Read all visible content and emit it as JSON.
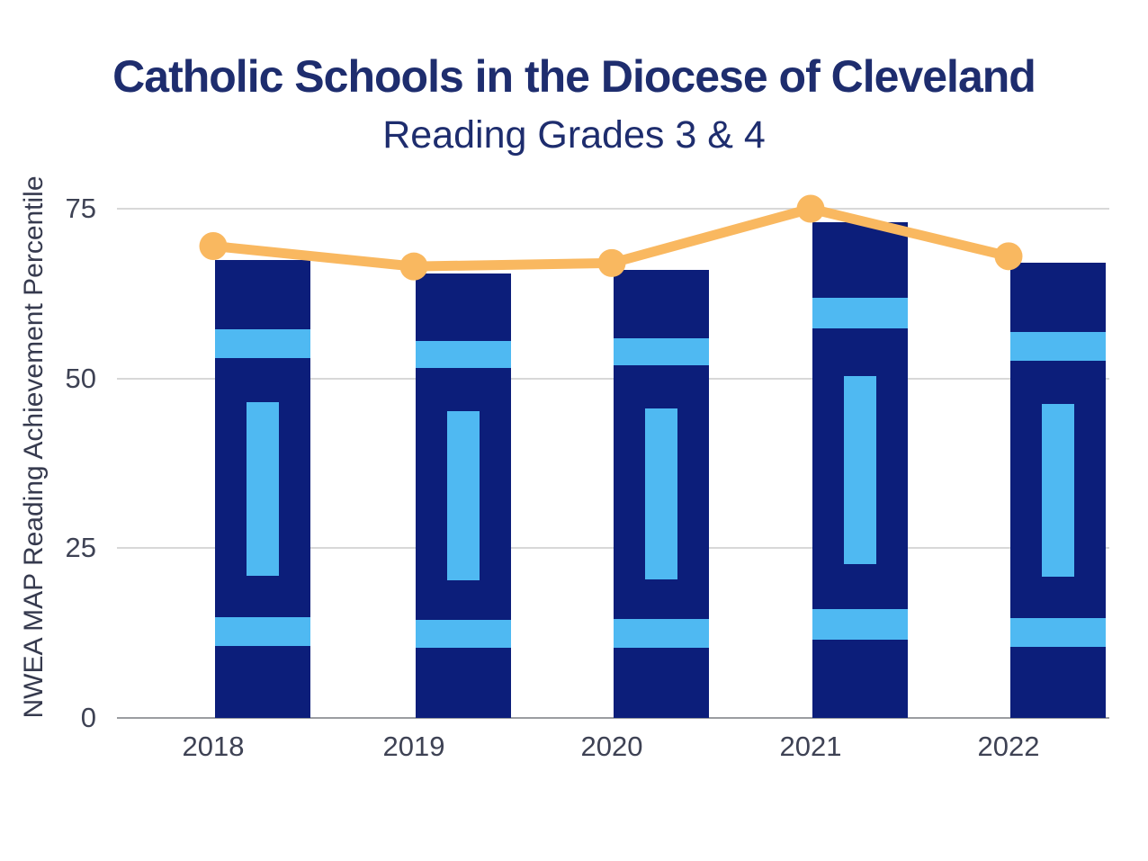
{
  "chart_data": {
    "type": "bar",
    "title": "Catholic Schools in the Diocese of Cleveland",
    "subtitle": "Reading Grades 3 & 4",
    "ylabel": "NWEA MAP Reading Achievement Percentile",
    "xlabel": "",
    "categories": [
      "2018",
      "2019",
      "2020",
      "2021",
      "2022"
    ],
    "bar_values": [
      67.5,
      65.5,
      66,
      73,
      67
    ],
    "line_values": [
      69.5,
      66.5,
      67,
      75,
      68
    ],
    "yticks": [
      0,
      25,
      50,
      75
    ],
    "ylim": [
      0,
      75
    ],
    "grid": true,
    "legend": false,
    "colors": {
      "bar": "#0C1E7A",
      "bar_accent": "#4FB9F2",
      "line": "#F9B860",
      "title": "#1E2D6E",
      "axis_text": "#3E4254",
      "gridline": "#D8D8D8",
      "zero_line": "#9B9DA1",
      "background": "#FFFFFF"
    }
  }
}
